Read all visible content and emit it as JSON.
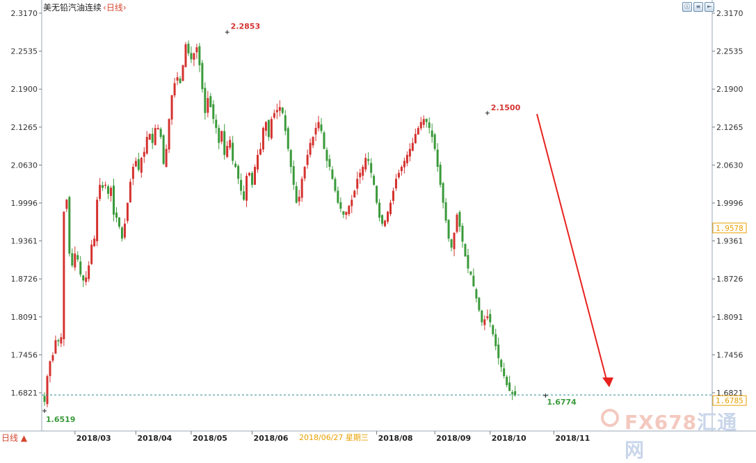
{
  "header": {
    "title": "美无铅汽油连续",
    "period": "‹日线›",
    "buttons": [
      "ⓘ",
      "≡",
      "⇤"
    ]
  },
  "footer": {
    "period_label": "日线 ▲",
    "cursor_date": "2018/06/27  星期三"
  },
  "watermark": {
    "part1": "FX678",
    "part2": "汇通网"
  },
  "colors": {
    "up": "#d4322f",
    "down": "#3a9a3a",
    "arrow": "#e8211d",
    "dash": "#2a8a8a",
    "current": "#e8a000"
  },
  "chart_data": {
    "type": "candlestick",
    "title": "美无铅汽油连续",
    "y_ticks": [
      "2.3170",
      "2.2535",
      "2.1900",
      "2.1265",
      "2.0630",
      "1.9996",
      "1.9361",
      "1.8726",
      "1.8091",
      "1.7456",
      "1.6821"
    ],
    "ylim": [
      1.6519,
      2.317
    ],
    "x_ticks": [
      {
        "label": "2018/03",
        "index": 11
      },
      {
        "label": "2018/04",
        "index": 33
      },
      {
        "label": "2018/05",
        "index": 53
      },
      {
        "label": "2018/06",
        "index": 75
      },
      {
        "label": "2018/08",
        "index": 120
      },
      {
        "label": "2018/09",
        "index": 141
      },
      {
        "label": "2018/10",
        "index": 161
      },
      {
        "label": "2018/11",
        "index": 184
      }
    ],
    "annotations": {
      "high": {
        "value": "2.2853",
        "index": 66
      },
      "local_high": {
        "value": "2.1500",
        "index": 160
      },
      "low_start": {
        "value": "1.6519",
        "index": 0
      },
      "low_end": {
        "value": "1.6774",
        "index": 181
      }
    },
    "current_price": "1.6785",
    "current_value": 1.6785,
    "cursor_price": "1.9578",
    "cursor_value": 1.9578,
    "closes": [
      1.667,
      1.71,
      1.735,
      1.745,
      1.77,
      1.768,
      1.775,
      1.985,
      2.005,
      1.915,
      1.895,
      1.915,
      1.905,
      1.88,
      1.87,
      1.875,
      1.895,
      1.93,
      1.94,
      2.005,
      2.03,
      2.025,
      2.03,
      2.015,
      2.025,
      1.98,
      1.975,
      1.96,
      1.94,
      1.965,
      2.0,
      2.035,
      2.06,
      2.07,
      2.055,
      2.075,
      2.085,
      2.11,
      2.115,
      2.1,
      2.125,
      2.125,
      2.11,
      2.065,
      2.09,
      2.14,
      2.18,
      2.2,
      2.21,
      2.2,
      2.23,
      2.265,
      2.25,
      2.24,
      2.25,
      2.26,
      2.23,
      2.19,
      2.15,
      2.175,
      2.16,
      2.14,
      2.125,
      2.1,
      2.12,
      2.08,
      2.095,
      2.105,
      2.07,
      2.06,
      2.04,
      2.02,
      2.005,
      2.045,
      2.05,
      2.03,
      2.06,
      2.08,
      2.09,
      2.125,
      2.135,
      2.11,
      2.14,
      2.15,
      2.155,
      2.16,
      2.15,
      2.12,
      2.09,
      2.06,
      2.03,
      2.0,
      2.01,
      2.04,
      2.06,
      2.08,
      2.1,
      2.11,
      2.125,
      2.135,
      2.12,
      2.09,
      2.07,
      2.06,
      2.04,
      2.02,
      2.0,
      1.99,
      1.98,
      1.985,
      1.995,
      2.005,
      2.02,
      2.04,
      2.05,
      2.06,
      2.075,
      2.07,
      2.05,
      2.03,
      2.0,
      1.975,
      1.965,
      1.97,
      1.985,
      2.0,
      2.02,
      2.04,
      2.05,
      2.06,
      2.07,
      2.08,
      2.09,
      2.1,
      2.115,
      2.125,
      2.135,
      2.14,
      2.135,
      2.125,
      2.11,
      2.09,
      2.06,
      2.03,
      2.0,
      1.97,
      1.94,
      1.925,
      1.95,
      1.98,
      1.96,
      1.935,
      1.91,
      1.89,
      1.88,
      1.86,
      1.84,
      1.82,
      1.8,
      1.805,
      1.81,
      1.8,
      1.78,
      1.76,
      1.74,
      1.725,
      1.71,
      1.695,
      1.685,
      1.68,
      1.678
    ]
  }
}
